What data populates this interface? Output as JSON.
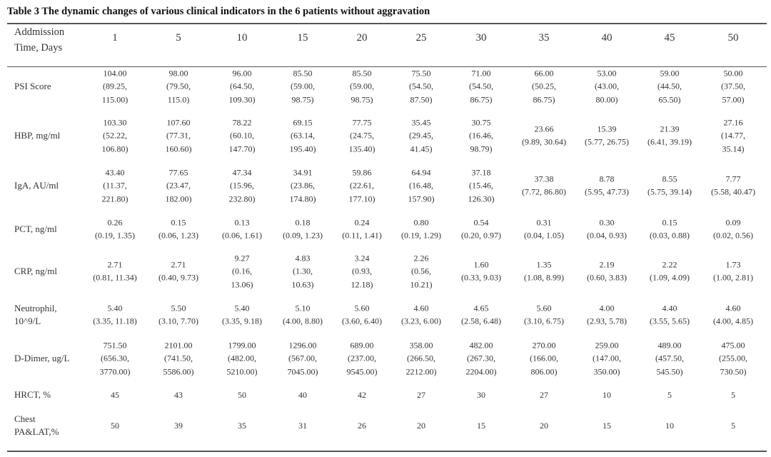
{
  "title": "Table 3 The dynamic changes of various clinical indicators in the 6 patients without aggravation",
  "header": {
    "label_line1": "Addmission",
    "label_line2": "Time, Days",
    "columns": [
      "1",
      "5",
      "10",
      "15",
      "20",
      "25",
      "30",
      "35",
      "40",
      "45",
      "50"
    ]
  },
  "rows": [
    {
      "label": [
        "PSI Score"
      ],
      "cells": [
        [
          "104.00",
          "(89.25,",
          "115.00)"
        ],
        [
          "98.00",
          "(79.50,",
          "115.0)"
        ],
        [
          "96.00",
          "(64.50,",
          "109.30)"
        ],
        [
          "85.50",
          "(59.00,",
          "98.75)"
        ],
        [
          "85.50",
          "(59.00,",
          "98.75)"
        ],
        [
          "75.50",
          "(54.50,",
          "87.50)"
        ],
        [
          "71.00",
          "(54.50,",
          "86.75)"
        ],
        [
          "66.00",
          "(50.25,",
          "86.75)"
        ],
        [
          "53.00",
          "(43.00,",
          "80.00)"
        ],
        [
          "59.00",
          "(44.50,",
          "65.50)"
        ],
        [
          "50.00",
          "(37.50,",
          "57.00)"
        ]
      ]
    },
    {
      "label": [
        "HBP, mg/ml"
      ],
      "cells": [
        [
          "103.30",
          "(52.22,",
          "106.80)"
        ],
        [
          "107.60",
          "(77.31,",
          "160.60)"
        ],
        [
          "78.22",
          "(60.10,",
          "147.70)"
        ],
        [
          "69.15",
          "(63.14,",
          "195.40)"
        ],
        [
          "77.75",
          "(24.75,",
          "135.40)"
        ],
        [
          "35.45",
          "(29.45,",
          "41.45)"
        ],
        [
          "30.75",
          "(16.46,",
          "98.79)"
        ],
        [
          "23.66",
          "(9.89, 30.64)"
        ],
        [
          "15.39",
          "(5.77, 26.75)"
        ],
        [
          "21.39",
          "(6.41, 39.19)"
        ],
        [
          "27.16",
          "(14.77,",
          "35.14)"
        ]
      ]
    },
    {
      "label": [
        "IgA, AU/ml"
      ],
      "cells": [
        [
          "43.40",
          "(11.37,",
          "221.80)"
        ],
        [
          "77.65",
          "(23.47,",
          "182.00)"
        ],
        [
          "47.34",
          "(15.96,",
          "232.80)"
        ],
        [
          "34.91",
          "(23.86,",
          "174.80)"
        ],
        [
          "59.86",
          "(22.61,",
          "177.10)"
        ],
        [
          "64.94",
          "(16.48,",
          "157.90)"
        ],
        [
          "37.18",
          "(15.46,",
          "126.30)"
        ],
        [
          "37.38",
          "(7.72, 86.80)"
        ],
        [
          "8.78",
          "(5.95, 47.73)"
        ],
        [
          "8.55",
          "(5.75, 39.14)"
        ],
        [
          "7.77",
          "(5.58, 40.47)"
        ]
      ]
    },
    {
      "label": [
        "PCT, ng/ml"
      ],
      "cells": [
        [
          "0.26",
          "(0.19, 1.35)"
        ],
        [
          "0.15",
          "(0.06, 1.23)"
        ],
        [
          "0.13",
          "(0.06, 1.61)"
        ],
        [
          "0.18",
          "(0.09, 1.23)"
        ],
        [
          "0.24",
          "(0.11, 1.41)"
        ],
        [
          "0.80",
          "(0.19, 1.29)"
        ],
        [
          "0.54",
          "(0.20, 0.97)"
        ],
        [
          "0.31",
          "(0.04, 1.05)"
        ],
        [
          "0.30",
          "(0.04, 0.93)"
        ],
        [
          "0.15",
          "(0.03, 0.88)"
        ],
        [
          "0.09",
          "(0.02, 0.56)"
        ]
      ]
    },
    {
      "label": [
        "CRP,  ng/ml"
      ],
      "cells": [
        [
          "2.71",
          "(0.81, 11.34)"
        ],
        [
          "2.71",
          "(0.40, 9.73)"
        ],
        [
          "9.27",
          "(0.16,",
          "13.06)"
        ],
        [
          "4.83",
          "(1.30,",
          "10.63)"
        ],
        [
          "3.24",
          "(0.93,",
          "12.18)"
        ],
        [
          "2.26",
          "(0.56,",
          "10.21)"
        ],
        [
          "1.60",
          "(0.33, 9.03)"
        ],
        [
          "1.35",
          "(1.08, 8.99)"
        ],
        [
          "2.19",
          "(0.60, 3.83)"
        ],
        [
          "2.22",
          "(1.09, 4.09)"
        ],
        [
          "1.73",
          "(1.00, 2.81)"
        ]
      ]
    },
    {
      "label": [
        "Neutrophil,",
        "10^9/L"
      ],
      "cells": [
        [
          "5.40",
          "(3.35, 11.18)"
        ],
        [
          "5.50",
          "(3.10, 7.70)"
        ],
        [
          "5.40",
          "(3.35, 9.18)"
        ],
        [
          "5.10",
          "(4.00, 8.80)"
        ],
        [
          "5.60",
          "(3.60, 6.40)"
        ],
        [
          "4.60",
          "(3.23, 6.00)"
        ],
        [
          "4.65",
          "(2.58, 6.48)"
        ],
        [
          "5.60",
          "(3.10, 6.75)"
        ],
        [
          "4.00",
          "(2.93, 5.78)"
        ],
        [
          "4.40",
          "(3.55, 5.65)"
        ],
        [
          "4.60",
          "(4.00, 4.85)"
        ]
      ]
    },
    {
      "label": [
        "D-Dimer, ug/L"
      ],
      "cells": [
        [
          "751.50",
          "(656.30,",
          "3770.00)"
        ],
        [
          "2101.00",
          "(741.50,",
          "5586.00)"
        ],
        [
          "1799.00",
          "(482.00,",
          "5210.00)"
        ],
        [
          "1296.00",
          "(567.00,",
          "7045.00)"
        ],
        [
          "689.00",
          "(237.00,",
          "9545.00)"
        ],
        [
          "358.00",
          "(266.50,",
          "2212.00)"
        ],
        [
          "482.00",
          "(267.30,",
          "2204.00)"
        ],
        [
          "270.00",
          "(166.00,",
          "806.00)"
        ],
        [
          "259.00",
          "(147.00,",
          "350.00)"
        ],
        [
          "489.00",
          "(457.50,",
          "545.50)"
        ],
        [
          "475.00",
          "(255.00,",
          "730.50)"
        ]
      ]
    },
    {
      "label": [
        "HRCT, %"
      ],
      "cells": [
        [
          "45"
        ],
        [
          "43"
        ],
        [
          "50"
        ],
        [
          "40"
        ],
        [
          "42"
        ],
        [
          "27"
        ],
        [
          "30"
        ],
        [
          "27"
        ],
        [
          "10"
        ],
        [
          "5"
        ],
        [
          "5"
        ]
      ]
    },
    {
      "label": [
        "Chest",
        "PA&LAT,%"
      ],
      "cells": [
        [
          "50"
        ],
        [
          "39"
        ],
        [
          "35"
        ],
        [
          "31"
        ],
        [
          "26"
        ],
        [
          "20"
        ],
        [
          "15"
        ],
        [
          "20"
        ],
        [
          "15"
        ],
        [
          "10"
        ],
        [
          "5"
        ]
      ]
    }
  ]
}
